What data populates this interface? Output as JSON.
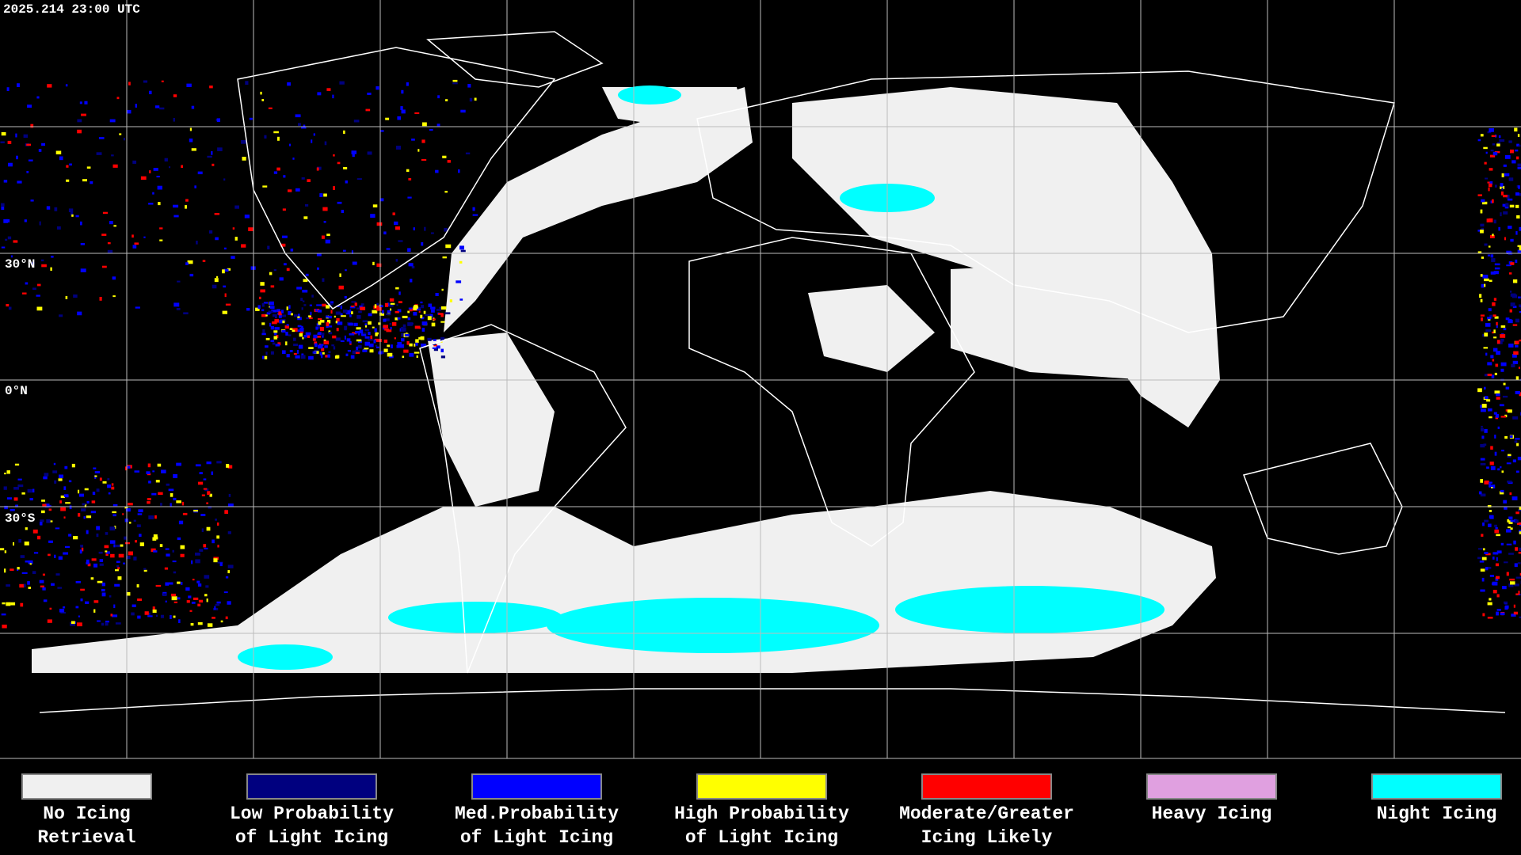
{
  "header": {
    "timestamp": "2025.214 23:00 UTC"
  },
  "map": {
    "lat_labels": [
      "30°N",
      "0°N",
      "30°S"
    ]
  },
  "legend": {
    "items": [
      {
        "label": [
          "No Icing",
          "Retrieval"
        ],
        "color": "#f0f0f0"
      },
      {
        "label": [
          "Low Probability",
          "of Light Icing"
        ],
        "color": "#00007f"
      },
      {
        "label": [
          "Med.Probability",
          "of Light Icing"
        ],
        "color": "#0000ff"
      },
      {
        "label": [
          "High Probability",
          "of Light Icing"
        ],
        "color": "#ffff00"
      },
      {
        "label": [
          "Moderate/Greater",
          "Icing Likely"
        ],
        "color": "#ff0000"
      },
      {
        "label": [
          "Heavy Icing"
        ],
        "color": "#e0a0e0"
      },
      {
        "label": [
          "Night Icing"
        ],
        "color": "#00ffff"
      }
    ]
  }
}
